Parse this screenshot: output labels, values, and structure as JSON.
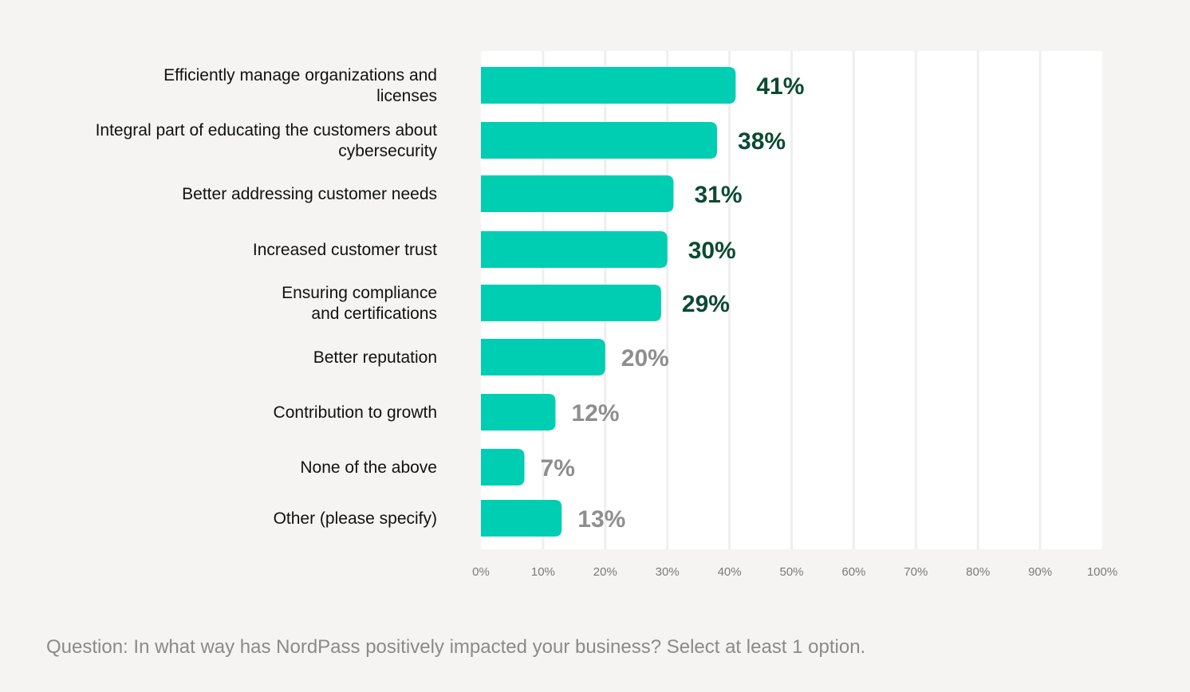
{
  "chart_data": {
    "type": "bar",
    "orientation": "horizontal",
    "categories": [
      [
        "Efficiently manage organizations and",
        "licenses"
      ],
      [
        "Integral part of educating  the customers about",
        "cybersecurity"
      ],
      [
        "Better addressing customer needs"
      ],
      [
        "Increased customer trust"
      ],
      [
        "Ensuring compliance",
        "and certifications"
      ],
      [
        "Better reputation"
      ],
      [
        "Contribution to growth"
      ],
      [
        "None of the above"
      ],
      [
        "Other (please specify)"
      ]
    ],
    "values": [
      41,
      38,
      31,
      30,
      29,
      20,
      12,
      7,
      13
    ],
    "value_labels": [
      "41%",
      "38%",
      "31%",
      "30%",
      "29%",
      "20%",
      "12%",
      "7%",
      "13%"
    ],
    "highlighted_count": 5,
    "xlim": [
      0,
      100
    ],
    "xticks": [
      0,
      10,
      20,
      30,
      40,
      50,
      60,
      70,
      80,
      90,
      100
    ],
    "xtick_labels": [
      "0%",
      "10%",
      "20%",
      "30%",
      "40%",
      "50%",
      "60%",
      "70%",
      "80%",
      "90%",
      "100%"
    ],
    "grid": true,
    "xlabel": "",
    "ylabel": "",
    "title": "",
    "colors": {
      "bar": "#00ceb3",
      "value_highlight": "#0b4a33",
      "value_muted": "#8e8e8e",
      "plot_bg": "#ffffff",
      "grid": "#efefef"
    }
  },
  "footnote": "Question: In what way has NordPass positively impacted your business? Select at least 1 option."
}
